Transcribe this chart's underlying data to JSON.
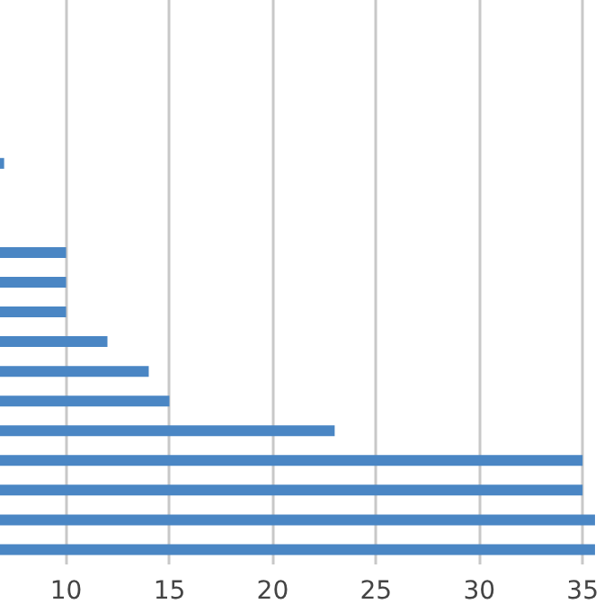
{
  "chart_data": {
    "type": "bar",
    "orientation": "horizontal",
    "categories": [
      null,
      null,
      null,
      null,
      null,
      null,
      null,
      null,
      null,
      null,
      null,
      null,
      null,
      null,
      null,
      null,
      null,
      null,
      null
    ],
    "values": [
      null,
      null,
      null,
      null,
      null,
      7,
      null,
      null,
      10,
      10,
      10,
      12,
      14,
      15,
      23,
      35,
      35,
      35.6,
      35.6
    ],
    "color": "#4a86c4",
    "xlim": [
      6.8,
      35.6
    ],
    "xticks": [
      10,
      15,
      20,
      25,
      30,
      35
    ],
    "grid": "x"
  }
}
